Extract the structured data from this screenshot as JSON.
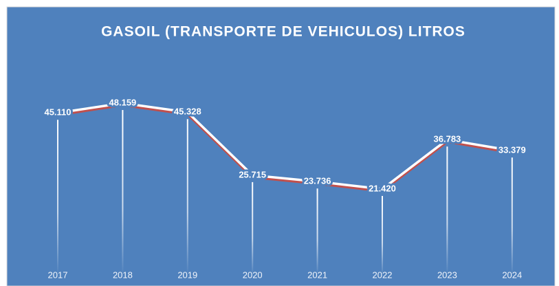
{
  "chart_data": {
    "type": "line",
    "title": "GASOIL (TRANSPORTE DE VEHICULOS) LITROS",
    "categories": [
      "2017",
      "2018",
      "2019",
      "2020",
      "2021",
      "2022",
      "2023",
      "2024"
    ],
    "values": [
      45110,
      48159,
      45328,
      25715,
      23736,
      21420,
      36783,
      33379
    ],
    "value_labels": [
      "45.110",
      "48.159",
      "45.328",
      "25.715",
      "23.736",
      "21.420",
      "36.783",
      "33.379"
    ],
    "color": "#ffffff"
  }
}
